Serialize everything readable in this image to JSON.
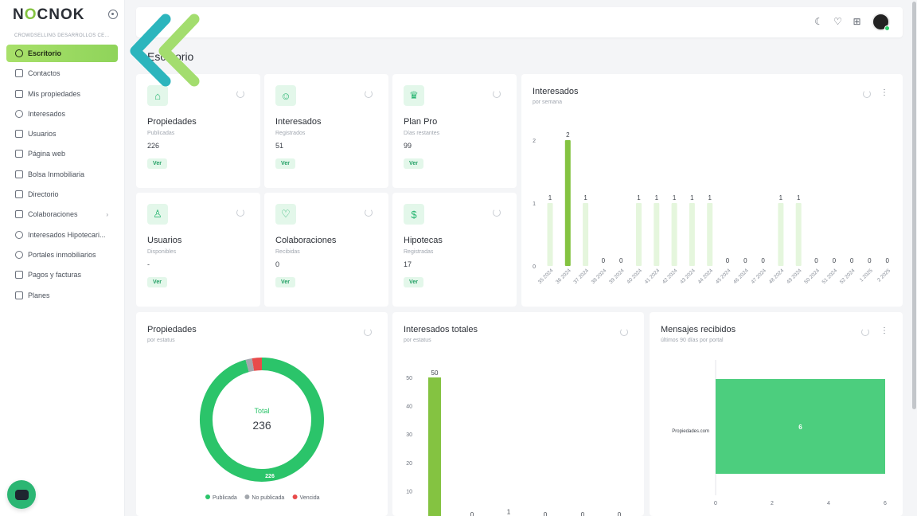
{
  "app": {
    "logo_part1": "N",
    "logo_o": "O",
    "logo_part2": "CNOK",
    "tagline": "CROWDSELLING DESARROLLOS CE..."
  },
  "sidebar": {
    "items": [
      {
        "label": "Escritorio",
        "icon": "dashboard-icon",
        "active": true
      },
      {
        "label": "Contactos",
        "icon": "contacts-icon"
      },
      {
        "label": "Mis propiedades",
        "icon": "home-icon"
      },
      {
        "label": "Interesados",
        "icon": "smile-icon"
      },
      {
        "label": "Usuarios",
        "icon": "user-icon"
      },
      {
        "label": "Página web",
        "icon": "browser-icon"
      },
      {
        "label": "Bolsa Inmobiliaria",
        "icon": "house-icon"
      },
      {
        "label": "Directorio",
        "icon": "directory-icon"
      },
      {
        "label": "Colaboraciones",
        "icon": "handshake-icon",
        "chevron": "›"
      },
      {
        "label": "Interesados Hipotecari...",
        "icon": "dollar-circle-icon"
      },
      {
        "label": "Portales inmobiliarios",
        "icon": "globe-icon"
      },
      {
        "label": "Pagos y facturas",
        "icon": "invoice-icon"
      },
      {
        "label": "Planes",
        "icon": "dollar-icon"
      }
    ]
  },
  "header": {
    "page_title": "Escritorio"
  },
  "cards": [
    {
      "title": "Propiedades",
      "sub": "Publicadas",
      "value": "226",
      "button": "Ver",
      "icon": "home-icon"
    },
    {
      "title": "Interesados",
      "sub": "Registrados",
      "value": "51",
      "button": "Ver",
      "icon": "smile-icon"
    },
    {
      "title": "Plan Pro",
      "sub": "Días restantes",
      "value": "99",
      "button": "Ver",
      "icon": "crown-icon"
    },
    {
      "title": "Usuarios",
      "sub": "Disponibles",
      "value": "-",
      "button": "Ver",
      "icon": "user-icon"
    },
    {
      "title": "Colaboraciones",
      "sub": "Recibidas",
      "value": "0",
      "button": "Ver",
      "icon": "handshake-icon"
    },
    {
      "title": "Hipotecas",
      "sub": "Registradas",
      "value": "17",
      "button": "Ver",
      "icon": "dollar-icon"
    }
  ],
  "panels": {
    "interesados": {
      "title": "Interesados",
      "sub": "por semana"
    },
    "propiedades": {
      "title": "Propiedades",
      "sub": "por estatus",
      "center_label": "Total",
      "center_value": "236"
    },
    "totales": {
      "title": "Interesados totales",
      "sub": "por estatus"
    },
    "mensajes": {
      "title": "Mensajes recibidos",
      "sub": "últimos 90 días por portal"
    }
  },
  "colors": {
    "accent": "#84c341",
    "green": "#2bc46a",
    "red": "#e84b4b",
    "gray": "#a3a7ad",
    "bar_light": "#e5f6dd"
  },
  "chart_data": [
    {
      "type": "bar",
      "title": "Interesados",
      "subtitle": "por semana",
      "categories": [
        "35 2024",
        "36 2024",
        "37 2024",
        "38 2024",
        "39 2024",
        "40 2024",
        "41 2024",
        "42 2024",
        "43 2024",
        "44 2024",
        "45 2024",
        "46 2024",
        "47 2024",
        "48 2024",
        "49 2024",
        "50 2024",
        "51 2024",
        "52 2024",
        "1 2025",
        "2 2025"
      ],
      "values": [
        1,
        2,
        1,
        0,
        0,
        1,
        1,
        1,
        1,
        1,
        0,
        0,
        0,
        1,
        1,
        0,
        0,
        0,
        0,
        0
      ],
      "highlight_index": 1,
      "yticks": [
        "0",
        "1",
        "2"
      ],
      "ylim": [
        0,
        2
      ]
    },
    {
      "type": "pie",
      "title": "Propiedades",
      "subtitle": "por estatus",
      "slices": [
        {
          "name": "Publicada",
          "value": 226,
          "color": "#2bc46a"
        },
        {
          "name": "No publicada",
          "value": 4,
          "color": "#a3a7ad"
        },
        {
          "name": "Vencida",
          "value": 6,
          "color": "#e84b4b"
        }
      ],
      "visible_label": "226"
    },
    {
      "type": "bar",
      "title": "Interesados totales",
      "subtitle": "por estatus",
      "values": [
        50,
        0,
        1,
        0,
        0,
        0
      ],
      "yticks": [
        "10",
        "20",
        "30",
        "40",
        "50"
      ],
      "ylim": [
        0,
        55
      ]
    },
    {
      "type": "bar",
      "orientation": "horizontal",
      "title": "Mensajes recibidos",
      "subtitle": "últimos 90 días por portal",
      "categories": [
        "Propiedades.com"
      ],
      "values": [
        6
      ],
      "xticks": [
        "0",
        "2",
        "4",
        "6"
      ],
      "xlim": [
        0,
        6
      ]
    }
  ]
}
